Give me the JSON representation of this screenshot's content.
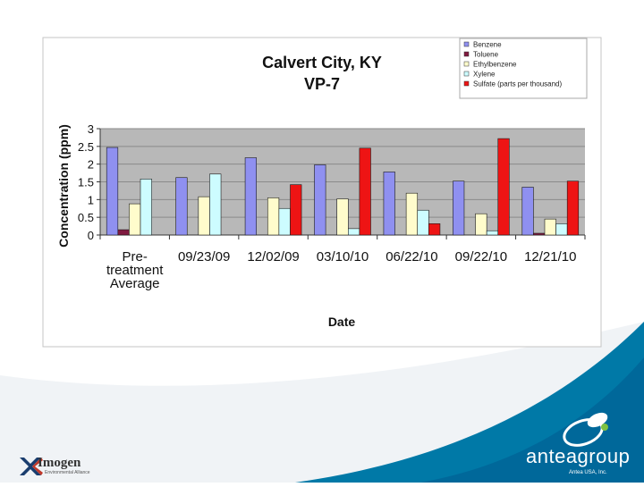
{
  "footer": {
    "left_logo": "Imogen",
    "left_logo_sub": "Environmental Alliance",
    "right_logo": "anteagroup",
    "copyright": "Antea USA, Inc."
  },
  "colors": {
    "teal": "#0079a7",
    "teal_dark": "#005f85",
    "plot_bg": "#b8b8b8",
    "benzene": "#8f90f0",
    "toluene": "#801a40",
    "ethylbenzene": "#fffccc",
    "xylene": "#cdfcff",
    "sulfate": "#ee1414"
  },
  "chart_data": {
    "type": "bar",
    "title": "Calvert City, KY",
    "subtitle": "VP-7",
    "xlabel": "Date",
    "ylabel": "Concentration (ppm)",
    "ylim": [
      0,
      3
    ],
    "yticks": [
      "0",
      "0.5",
      "1",
      "1.5",
      "2",
      "2.5",
      "3"
    ],
    "grid": true,
    "legend_position": "top-right",
    "categories": [
      [
        "Pre-",
        "treatment",
        "Average"
      ],
      [
        "09/23/09"
      ],
      [
        "12/02/09"
      ],
      [
        "03/10/10"
      ],
      [
        "06/22/10"
      ],
      [
        "09/22/10"
      ],
      [
        "12/21/10"
      ]
    ],
    "series": [
      {
        "name": "Benzene",
        "color": "#8f90f0",
        "values": [
          2.47,
          1.62,
          2.18,
          1.98,
          1.78,
          1.52,
          1.35
        ]
      },
      {
        "name": "Toluene",
        "color": "#801a40",
        "values": [
          0.15,
          0,
          0,
          0,
          0,
          0,
          0.05
        ]
      },
      {
        "name": "Ethylbenzene",
        "color": "#fffccc",
        "values": [
          0.88,
          1.08,
          1.05,
          1.02,
          1.18,
          0.6,
          0.45
        ]
      },
      {
        "name": "Xylene",
        "color": "#cdfcff",
        "values": [
          1.58,
          1.72,
          0.75,
          0.18,
          0.7,
          0.12,
          0.32
        ]
      },
      {
        "name": "Sulfate (parts per thousand)",
        "color": "#ee1414",
        "values": [
          0,
          0,
          1.42,
          2.45,
          0.32,
          2.72,
          1.52
        ]
      }
    ]
  }
}
